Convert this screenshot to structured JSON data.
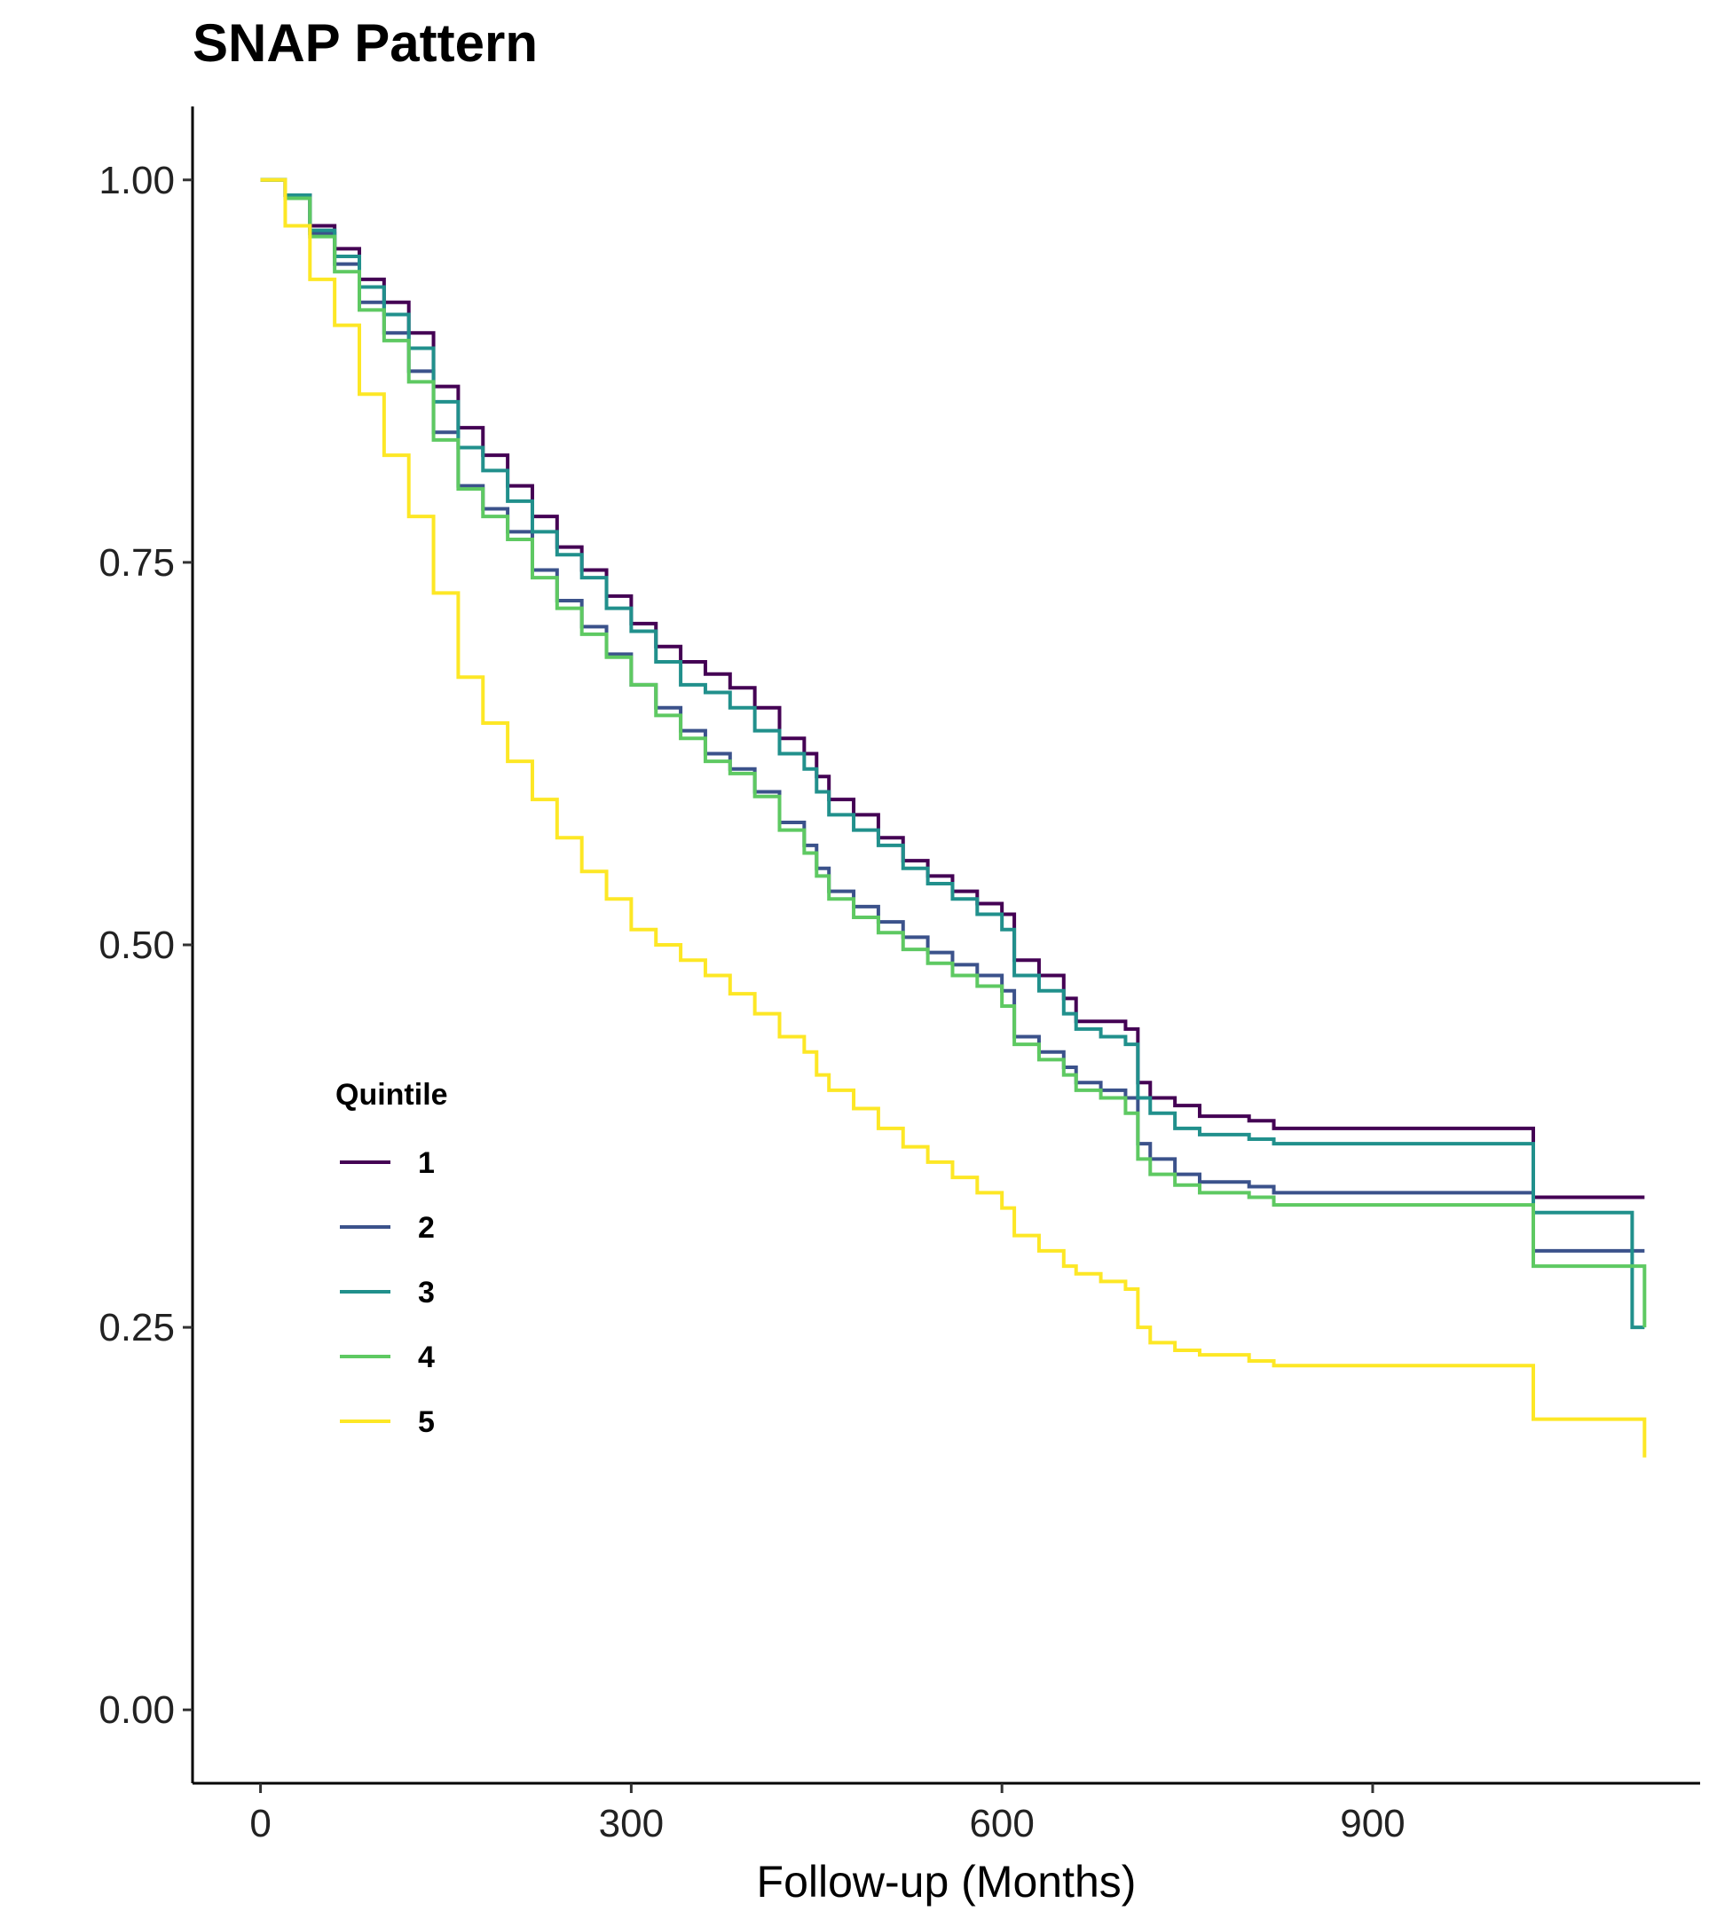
{
  "chart_data": {
    "type": "line",
    "step": true,
    "title": "SNAP Pattern",
    "xlabel": "Follow-up (Months)",
    "ylabel": "",
    "xlim": [
      -55,
      1165
    ],
    "ylim": [
      -0.048,
      1.048
    ],
    "xticks": [
      0,
      300,
      600,
      900
    ],
    "xtick_labels": [
      "0",
      "300",
      "600",
      "900"
    ],
    "yticks": [
      0,
      0.25,
      0.5,
      0.75,
      1
    ],
    "ytick_labels": [
      "0.00",
      "0.25",
      "0.50",
      "0.75",
      "1.00"
    ],
    "grid": false,
    "legend": {
      "title": "Quintile",
      "position": "left-middle"
    },
    "series": [
      {
        "name": "1",
        "color": "#440154",
        "x": [
          0,
          20,
          40,
          60,
          80,
          100,
          120,
          140,
          160,
          180,
          200,
          220,
          240,
          260,
          280,
          300,
          320,
          340,
          360,
          380,
          400,
          420,
          440,
          450,
          460,
          480,
          500,
          520,
          540,
          560,
          580,
          600,
          610,
          630,
          650,
          660,
          680,
          700,
          710,
          720,
          740,
          760,
          800,
          820,
          1000,
          1030,
          1110,
          1120
        ],
        "y": [
          1.0,
          0.99,
          0.97,
          0.955,
          0.935,
          0.92,
          0.9,
          0.865,
          0.838,
          0.82,
          0.8,
          0.78,
          0.76,
          0.745,
          0.728,
          0.71,
          0.695,
          0.685,
          0.677,
          0.668,
          0.655,
          0.635,
          0.625,
          0.61,
          0.595,
          0.585,
          0.57,
          0.555,
          0.545,
          0.535,
          0.527,
          0.52,
          0.49,
          0.48,
          0.465,
          0.45,
          0.45,
          0.445,
          0.41,
          0.4,
          0.395,
          0.388,
          0.385,
          0.38,
          0.38,
          0.335,
          0.335,
          0.335
        ]
      },
      {
        "name": "2",
        "color": "#3b528b",
        "x": [
          0,
          20,
          40,
          60,
          80,
          100,
          120,
          140,
          160,
          180,
          200,
          220,
          240,
          260,
          280,
          300,
          320,
          340,
          360,
          380,
          400,
          420,
          440,
          450,
          460,
          480,
          500,
          520,
          540,
          560,
          580,
          600,
          610,
          630,
          650,
          660,
          680,
          700,
          710,
          720,
          740,
          760,
          800,
          820,
          1000,
          1030,
          1110,
          1120
        ],
        "y": [
          1.0,
          0.99,
          0.965,
          0.945,
          0.92,
          0.9,
          0.875,
          0.835,
          0.8,
          0.785,
          0.77,
          0.745,
          0.725,
          0.708,
          0.69,
          0.67,
          0.655,
          0.64,
          0.625,
          0.615,
          0.6,
          0.58,
          0.565,
          0.55,
          0.535,
          0.525,
          0.515,
          0.505,
          0.495,
          0.487,
          0.48,
          0.47,
          0.44,
          0.43,
          0.42,
          0.41,
          0.405,
          0.4,
          0.37,
          0.36,
          0.35,
          0.345,
          0.342,
          0.338,
          0.338,
          0.3,
          0.3,
          0.3
        ]
      },
      {
        "name": "3",
        "color": "#21908c",
        "x": [
          0,
          20,
          40,
          60,
          80,
          100,
          120,
          140,
          160,
          180,
          200,
          220,
          240,
          260,
          280,
          300,
          320,
          340,
          360,
          380,
          400,
          420,
          440,
          450,
          460,
          480,
          500,
          520,
          540,
          560,
          580,
          600,
          610,
          630,
          650,
          660,
          680,
          700,
          710,
          720,
          740,
          760,
          800,
          820,
          1000,
          1030,
          1110,
          1120
        ],
        "y": [
          1.0,
          0.99,
          0.967,
          0.95,
          0.93,
          0.912,
          0.89,
          0.855,
          0.825,
          0.81,
          0.79,
          0.77,
          0.755,
          0.74,
          0.72,
          0.705,
          0.685,
          0.67,
          0.665,
          0.655,
          0.64,
          0.625,
          0.615,
          0.6,
          0.585,
          0.575,
          0.565,
          0.55,
          0.54,
          0.53,
          0.52,
          0.51,
          0.48,
          0.47,
          0.455,
          0.445,
          0.44,
          0.435,
          0.4,
          0.39,
          0.38,
          0.376,
          0.373,
          0.37,
          0.37,
          0.325,
          0.25,
          0.25
        ]
      },
      {
        "name": "4",
        "color": "#5ec962",
        "x": [
          0,
          20,
          40,
          60,
          80,
          100,
          120,
          140,
          160,
          180,
          200,
          220,
          240,
          260,
          280,
          300,
          320,
          340,
          360,
          380,
          400,
          420,
          440,
          450,
          460,
          480,
          500,
          520,
          540,
          560,
          580,
          600,
          610,
          630,
          650,
          660,
          680,
          700,
          710,
          720,
          740,
          760,
          800,
          820,
          1000,
          1030,
          1110,
          1120
        ],
        "y": [
          1.0,
          0.988,
          0.963,
          0.94,
          0.915,
          0.895,
          0.868,
          0.83,
          0.798,
          0.78,
          0.765,
          0.74,
          0.72,
          0.703,
          0.688,
          0.67,
          0.65,
          0.635,
          0.62,
          0.612,
          0.597,
          0.575,
          0.56,
          0.545,
          0.53,
          0.518,
          0.508,
          0.497,
          0.488,
          0.48,
          0.473,
          0.46,
          0.435,
          0.425,
          0.415,
          0.405,
          0.4,
          0.39,
          0.36,
          0.35,
          0.343,
          0.338,
          0.335,
          0.33,
          0.33,
          0.29,
          0.29,
          0.25
        ]
      },
      {
        "name": "5",
        "color": "#fde725",
        "x": [
          0,
          20,
          40,
          60,
          80,
          100,
          120,
          140,
          160,
          180,
          200,
          220,
          240,
          260,
          280,
          300,
          320,
          340,
          360,
          380,
          400,
          420,
          440,
          450,
          460,
          480,
          500,
          520,
          540,
          560,
          580,
          600,
          610,
          630,
          650,
          660,
          680,
          700,
          710,
          720,
          740,
          760,
          800,
          820,
          1000,
          1030,
          1110,
          1120
        ],
        "y": [
          1.0,
          0.97,
          0.935,
          0.905,
          0.86,
          0.82,
          0.78,
          0.73,
          0.675,
          0.645,
          0.62,
          0.595,
          0.57,
          0.548,
          0.53,
          0.51,
          0.5,
          0.49,
          0.48,
          0.468,
          0.455,
          0.44,
          0.43,
          0.415,
          0.405,
          0.393,
          0.38,
          0.368,
          0.358,
          0.348,
          0.338,
          0.328,
          0.31,
          0.3,
          0.29,
          0.285,
          0.28,
          0.275,
          0.25,
          0.24,
          0.235,
          0.232,
          0.228,
          0.225,
          0.225,
          0.19,
          0.19,
          0.165
        ]
      }
    ]
  }
}
